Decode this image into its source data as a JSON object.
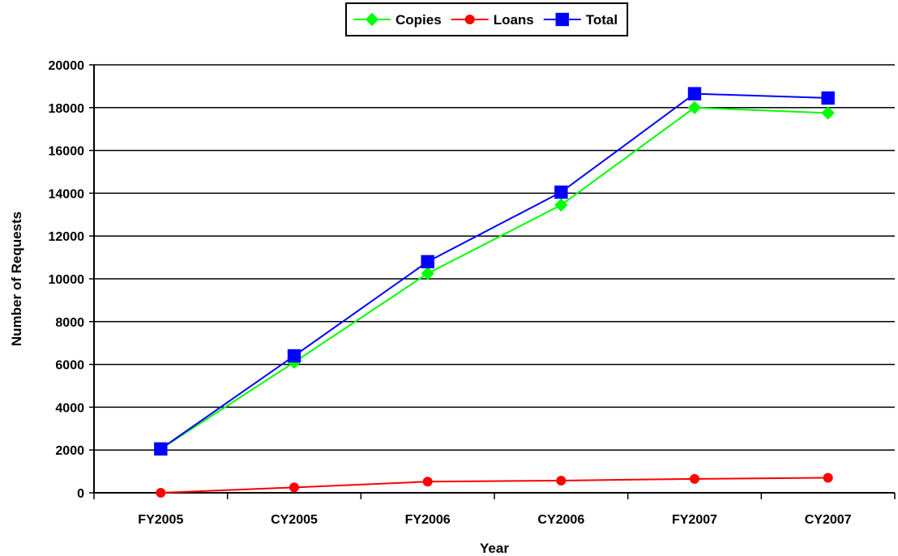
{
  "chart_data": {
    "type": "line",
    "categories": [
      "FY2005",
      "CY2005",
      "FY2006",
      "CY2006",
      "FY2007",
      "CY2007"
    ],
    "series": [
      {
        "name": "Copies",
        "color": "#00ff00",
        "marker": "diamond",
        "values": [
          2050,
          6100,
          10250,
          13450,
          18000,
          17750
        ]
      },
      {
        "name": "Loans",
        "color": "#ff0000",
        "marker": "circle",
        "values": [
          0,
          250,
          520,
          570,
          650,
          700
        ]
      },
      {
        "name": "Total",
        "color": "#0000ff",
        "marker": "square",
        "values": [
          2050,
          6400,
          10800,
          14050,
          18650,
          18450
        ]
      }
    ],
    "xlabel": "Year",
    "ylabel": "Number of Requests",
    "ylim": [
      0,
      20000
    ],
    "yticks": [
      0,
      2000,
      4000,
      6000,
      8000,
      10000,
      12000,
      14000,
      16000,
      18000,
      20000
    ],
    "grid": true,
    "legend_position": "top-center"
  }
}
